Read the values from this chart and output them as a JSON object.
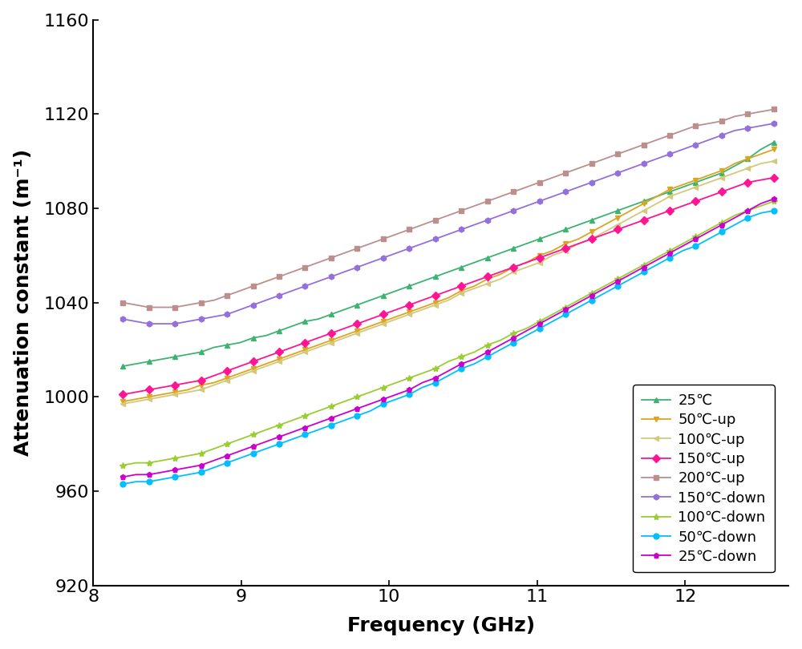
{
  "xlabel": "Frequency (GHz)",
  "ylabel": "Attenuation constant (m⁻¹)",
  "xlim": [
    8.0,
    12.7
  ],
  "ylim": [
    920,
    1160
  ],
  "xticks": [
    8,
    9,
    10,
    11,
    12
  ],
  "yticks": [
    920,
    960,
    1000,
    1040,
    1080,
    1120,
    1160
  ],
  "series": [
    {
      "label": "25℃",
      "color": "#3cb371",
      "marker": "^",
      "markersize": 5,
      "y_vals": [
        1013,
        1014,
        1015,
        1016,
        1017,
        1018,
        1019,
        1021,
        1022,
        1023,
        1025,
        1026,
        1028,
        1030,
        1032,
        1033,
        1035,
        1037,
        1039,
        1041,
        1043,
        1045,
        1047,
        1049,
        1051,
        1053,
        1055,
        1057,
        1059,
        1061,
        1063,
        1065,
        1067,
        1069,
        1071,
        1073,
        1075,
        1077,
        1079,
        1081,
        1083,
        1085,
        1087,
        1089,
        1091,
        1093,
        1095,
        1098,
        1101,
        1105,
        1108
      ]
    },
    {
      "label": "50℃-up",
      "color": "#daa520",
      "marker": "v",
      "markersize": 5,
      "y_vals": [
        998,
        999,
        1000,
        1001,
        1002,
        1003,
        1005,
        1006,
        1008,
        1010,
        1012,
        1014,
        1016,
        1018,
        1020,
        1022,
        1024,
        1026,
        1028,
        1030,
        1032,
        1034,
        1036,
        1038,
        1040,
        1042,
        1045,
        1047,
        1050,
        1052,
        1055,
        1057,
        1060,
        1062,
        1065,
        1067,
        1070,
        1073,
        1076,
        1079,
        1082,
        1085,
        1088,
        1090,
        1092,
        1094,
        1096,
        1099,
        1101,
        1103,
        1105
      ]
    },
    {
      "label": "100℃-up",
      "color": "#d4c87a",
      "marker": "<",
      "markersize": 5,
      "y_vals": [
        997,
        998,
        999,
        1000,
        1001,
        1002,
        1003,
        1005,
        1007,
        1009,
        1011,
        1013,
        1015,
        1017,
        1019,
        1021,
        1023,
        1025,
        1027,
        1029,
        1031,
        1033,
        1035,
        1037,
        1039,
        1041,
        1044,
        1046,
        1048,
        1050,
        1053,
        1055,
        1057,
        1060,
        1062,
        1065,
        1067,
        1070,
        1073,
        1076,
        1079,
        1082,
        1085,
        1087,
        1089,
        1091,
        1093,
        1095,
        1097,
        1099,
        1100
      ]
    },
    {
      "label": "150℃-up",
      "color": "#ff1493",
      "marker": "D",
      "markersize": 5,
      "y_vals": [
        1001,
        1002,
        1003,
        1004,
        1005,
        1006,
        1007,
        1009,
        1011,
        1013,
        1015,
        1017,
        1019,
        1021,
        1023,
        1025,
        1027,
        1029,
        1031,
        1033,
        1035,
        1037,
        1039,
        1041,
        1043,
        1045,
        1047,
        1049,
        1051,
        1053,
        1055,
        1057,
        1059,
        1061,
        1063,
        1065,
        1067,
        1069,
        1071,
        1073,
        1075,
        1077,
        1079,
        1081,
        1083,
        1085,
        1087,
        1089,
        1091,
        1092,
        1093
      ]
    },
    {
      "label": "200℃-up",
      "color": "#bc8f8f",
      "marker": "s",
      "markersize": 5,
      "y_vals": [
        1040,
        1039,
        1038,
        1038,
        1038,
        1039,
        1040,
        1041,
        1043,
        1045,
        1047,
        1049,
        1051,
        1053,
        1055,
        1057,
        1059,
        1061,
        1063,
        1065,
        1067,
        1069,
        1071,
        1073,
        1075,
        1077,
        1079,
        1081,
        1083,
        1085,
        1087,
        1089,
        1091,
        1093,
        1095,
        1097,
        1099,
        1101,
        1103,
        1105,
        1107,
        1109,
        1111,
        1113,
        1115,
        1116,
        1117,
        1119,
        1120,
        1121,
        1122
      ]
    },
    {
      "label": "150℃-down",
      "color": "#9370db",
      "marker": "h",
      "markersize": 5,
      "y_vals": [
        1033,
        1032,
        1031,
        1031,
        1031,
        1032,
        1033,
        1034,
        1035,
        1037,
        1039,
        1041,
        1043,
        1045,
        1047,
        1049,
        1051,
        1053,
        1055,
        1057,
        1059,
        1061,
        1063,
        1065,
        1067,
        1069,
        1071,
        1073,
        1075,
        1077,
        1079,
        1081,
        1083,
        1085,
        1087,
        1089,
        1091,
        1093,
        1095,
        1097,
        1099,
        1101,
        1103,
        1105,
        1107,
        1109,
        1111,
        1113,
        1114,
        1115,
        1116
      ]
    },
    {
      "label": "100℃-down",
      "color": "#9acd32",
      "marker": "*",
      "markersize": 6,
      "y_vals": [
        971,
        972,
        972,
        973,
        974,
        975,
        976,
        978,
        980,
        982,
        984,
        986,
        988,
        990,
        992,
        994,
        996,
        998,
        1000,
        1002,
        1004,
        1006,
        1008,
        1010,
        1012,
        1015,
        1017,
        1019,
        1022,
        1024,
        1027,
        1029,
        1032,
        1035,
        1038,
        1041,
        1044,
        1047,
        1050,
        1053,
        1056,
        1059,
        1062,
        1065,
        1068,
        1071,
        1074,
        1077,
        1079,
        1081,
        1083
      ]
    },
    {
      "label": "50℃-down",
      "color": "#00bfff",
      "marker": "o",
      "markersize": 5,
      "y_vals": [
        963,
        964,
        964,
        965,
        966,
        967,
        968,
        970,
        972,
        974,
        976,
        978,
        980,
        982,
        984,
        986,
        988,
        990,
        992,
        994,
        997,
        999,
        1001,
        1004,
        1006,
        1009,
        1012,
        1014,
        1017,
        1020,
        1023,
        1026,
        1029,
        1032,
        1035,
        1038,
        1041,
        1044,
        1047,
        1050,
        1053,
        1056,
        1059,
        1062,
        1064,
        1067,
        1070,
        1073,
        1076,
        1078,
        1079
      ]
    },
    {
      "label": "25℃-down",
      "color": "#cc00cc",
      "marker": "p",
      "markersize": 5,
      "y_vals": [
        966,
        967,
        967,
        968,
        969,
        970,
        971,
        973,
        975,
        977,
        979,
        981,
        983,
        985,
        987,
        989,
        991,
        993,
        995,
        997,
        999,
        1001,
        1003,
        1006,
        1008,
        1011,
        1014,
        1016,
        1019,
        1022,
        1025,
        1028,
        1031,
        1034,
        1037,
        1040,
        1043,
        1046,
        1049,
        1052,
        1055,
        1058,
        1061,
        1064,
        1067,
        1070,
        1073,
        1076,
        1079,
        1082,
        1084
      ]
    }
  ],
  "n_points": 51,
  "freq_start": 8.2,
  "freq_end": 12.6,
  "background_color": "#ffffff",
  "axis_linewidth": 1.5,
  "label_fontsize": 18,
  "tick_fontsize": 16,
  "legend_fontsize": 13
}
